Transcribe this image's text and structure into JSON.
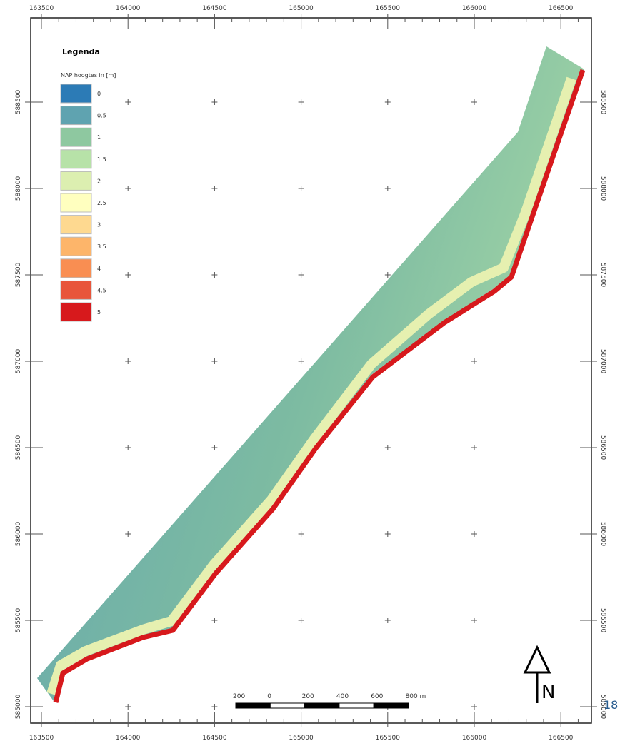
{
  "map": {
    "x_labels": [
      "163500",
      "164000",
      "164500",
      "165000",
      "165500",
      "166000",
      "166500"
    ],
    "y_labels": [
      "588500",
      "588000",
      "587500",
      "587000",
      "586500",
      "586000",
      "585500",
      "585000"
    ],
    "legend": {
      "title": "Legenda",
      "subtitle": "NAP hoogtes in [m]",
      "items": [
        {
          "label": "0",
          "color": "#2c7bb6"
        },
        {
          "label": "0.5",
          "color": "#5fa3b0"
        },
        {
          "label": "1",
          "color": "#8ec8a0"
        },
        {
          "label": "1.5",
          "color": "#b7e2a8"
        },
        {
          "label": "2",
          "color": "#dcefb0"
        },
        {
          "label": "2.5",
          "color": "#ffffbf"
        },
        {
          "label": "3",
          "color": "#fed990"
        },
        {
          "label": "3.5",
          "color": "#fdb56a"
        },
        {
          "label": "4",
          "color": "#f98e52"
        },
        {
          "label": "4.5",
          "color": "#e8553b"
        },
        {
          "label": "5",
          "color": "#d7191c"
        }
      ]
    },
    "scale_bar": [
      "200",
      "0",
      "200",
      "400",
      "600",
      "800 m"
    ],
    "north": "N"
  },
  "page_number": "18"
}
